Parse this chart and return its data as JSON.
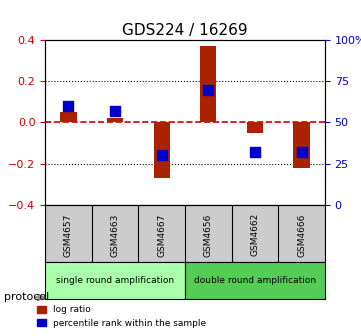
{
  "title": "GDS224 / 16269",
  "samples": [
    "GSM4657",
    "GSM4663",
    "GSM4667",
    "GSM4656",
    "GSM4662",
    "GSM4666"
  ],
  "log_ratio": [
    0.05,
    0.02,
    -0.27,
    0.37,
    -0.05,
    -0.22
  ],
  "percentile_rank": [
    0.11,
    0.07,
    -0.19,
    0.21,
    -0.16,
    -0.17
  ],
  "percentile_rank_pct": [
    60,
    57,
    30,
    70,
    32,
    32
  ],
  "ylim_left": [
    -0.4,
    0.4
  ],
  "ylim_right": [
    0,
    100
  ],
  "yticks_left": [
    -0.4,
    -0.2,
    0,
    0.2,
    0.4
  ],
  "yticks_right": [
    0,
    25,
    50,
    75,
    100
  ],
  "groups": [
    {
      "label": "single round amplification",
      "start": 0,
      "end": 3,
      "color": "#aaffaa"
    },
    {
      "label": "double round amplification",
      "start": 3,
      "end": 6,
      "color": "#55cc55"
    }
  ],
  "protocol_label": "protocol",
  "bar_color": "#aa2200",
  "dot_color": "#0000cc",
  "zero_line_color": "#cc0000",
  "grid_color": "#000000",
  "bg_color": "#ffffff",
  "left_tick_color": "#cc0000",
  "right_tick_color": "#0000cc",
  "bar_width": 0.35,
  "dot_size": 50
}
